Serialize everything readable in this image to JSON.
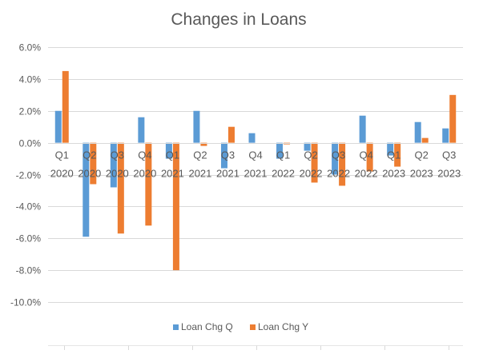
{
  "chart_data": {
    "type": "bar",
    "title": "Changes in Loans",
    "xlabel": "",
    "ylabel": "",
    "categories": [
      [
        "Q1",
        "2020"
      ],
      [
        "Q2",
        "2020"
      ],
      [
        "Q3",
        "2020"
      ],
      [
        "Q4",
        "2020"
      ],
      [
        "Q1",
        "2021"
      ],
      [
        "Q2",
        "2021"
      ],
      [
        "Q3",
        "2021"
      ],
      [
        "Q4",
        "2021"
      ],
      [
        "Q1",
        "2022"
      ],
      [
        "Q2",
        "2022"
      ],
      [
        "Q3",
        "2022"
      ],
      [
        "Q4",
        "2022"
      ],
      [
        "Q1",
        "2023"
      ],
      [
        "Q2",
        "2023"
      ],
      [
        "Q3",
        "2023"
      ]
    ],
    "series": [
      {
        "name": "Loan Chg Q",
        "color": "#5B9BD5",
        "values": [
          2.0,
          -5.9,
          -2.8,
          1.6,
          -1.0,
          2.0,
          -1.6,
          0.6,
          -1.0,
          -0.5,
          -2.0,
          1.7,
          -0.8,
          1.3,
          0.9
        ]
      },
      {
        "name": "Loan Chg Y",
        "color": "#ED7D31",
        "values": [
          4.5,
          -2.6,
          -5.7,
          -5.2,
          -8.0,
          -0.2,
          1.0,
          0.0,
          -0.1,
          -2.5,
          -2.7,
          -1.8,
          -1.5,
          0.3,
          3.0
        ]
      }
    ],
    "ylim": [
      -10,
      6
    ],
    "yticks": [
      "6.0%",
      "4.0%",
      "2.0%",
      "0.0%",
      "-2.0%",
      "-4.0%",
      "-6.0%",
      "-8.0%",
      "-10.0%"
    ],
    "ytick_values": [
      6,
      4,
      2,
      0,
      -2,
      -4,
      -6,
      -8,
      -10
    ],
    "grid": true,
    "legend_position": "bottom"
  }
}
